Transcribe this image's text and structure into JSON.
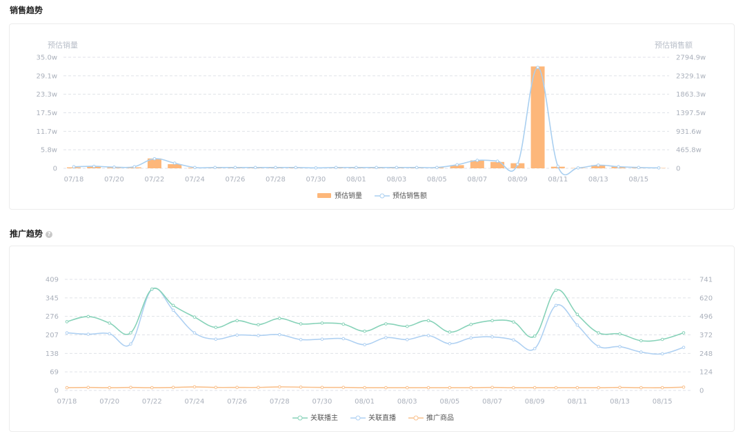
{
  "sales_section": {
    "title": "销售趋势"
  },
  "promo_section": {
    "title": "推广趋势",
    "help_icon": "question-circle-icon"
  },
  "chart_data": [
    {
      "type": "bar+line",
      "y_left_title": "预估销量",
      "y_right_title": "预估销售额",
      "y_left_ticks": [
        "0",
        "5.8w",
        "11.7w",
        "17.5w",
        "23.3w",
        "29.1w",
        "35.0w"
      ],
      "y_right_ticks": [
        "0",
        "465.8w",
        "931.6w",
        "1397.5w",
        "1863.3w",
        "2329.1w",
        "2794.9w"
      ],
      "y_left_range": [
        0,
        350000
      ],
      "y_right_range": [
        0,
        27949000
      ],
      "x_tick_labels": [
        "07/18",
        "07/20",
        "07/22",
        "07/24",
        "07/26",
        "07/28",
        "07/30",
        "08/01",
        "08/03",
        "08/05",
        "08/07",
        "08/09",
        "08/11",
        "08/13",
        "08/15"
      ],
      "categories": [
        "07/18",
        "07/19",
        "07/20",
        "07/21",
        "07/22",
        "07/23",
        "07/24",
        "07/25",
        "07/26",
        "07/27",
        "07/28",
        "07/29",
        "07/30",
        "07/31",
        "08/01",
        "08/02",
        "08/03",
        "08/04",
        "08/05",
        "08/06",
        "08/07",
        "08/08",
        "08/09",
        "08/10",
        "08/11",
        "08/12",
        "08/13",
        "08/14",
        "08/15",
        "08/16"
      ],
      "grid": true,
      "legend_position": "bottom",
      "series": [
        {
          "name": "预估销量",
          "kind": "bar",
          "color": "#fdb77a",
          "axis": "left",
          "values": [
            3000,
            5000,
            3000,
            3000,
            31000,
            13000,
            2000,
            2000,
            2000,
            2000,
            2000,
            2000,
            1500,
            2000,
            2000,
            2000,
            2000,
            2000,
            2000,
            10000,
            25000,
            20000,
            16000,
            321000,
            5000,
            1000,
            10000,
            5000,
            2000,
            1000
          ]
        },
        {
          "name": "预估销售额",
          "kind": "line",
          "color": "#a9cff0",
          "axis": "right",
          "values": [
            400000,
            500000,
            300000,
            400000,
            2400000,
            1300000,
            200000,
            200000,
            200000,
            200000,
            200000,
            200000,
            100000,
            200000,
            200000,
            200000,
            200000,
            200000,
            200000,
            900000,
            2000000,
            1800000,
            1000000,
            25400000,
            500000,
            100000,
            800000,
            400000,
            200000,
            100000
          ]
        }
      ]
    },
    {
      "type": "line",
      "y_left_ticks": [
        "0",
        "69",
        "138",
        "207",
        "276",
        "345",
        "409"
      ],
      "y_right_ticks": [
        "0",
        "124",
        "248",
        "372",
        "496",
        "620",
        "741"
      ],
      "y_left_range": [
        0,
        409
      ],
      "y_right_range": [
        0,
        741
      ],
      "x_tick_labels": [
        "07/18",
        "07/20",
        "07/22",
        "07/24",
        "07/26",
        "07/28",
        "07/30",
        "08/01",
        "08/03",
        "08/05",
        "08/07",
        "08/09",
        "08/11",
        "08/13",
        "08/15"
      ],
      "categories": [
        "07/18",
        "07/19",
        "07/20",
        "07/21",
        "07/22",
        "07/23",
        "07/24",
        "07/25",
        "07/26",
        "07/27",
        "07/28",
        "07/29",
        "07/30",
        "07/31",
        "08/01",
        "08/02",
        "08/03",
        "08/04",
        "08/05",
        "08/06",
        "08/07",
        "08/08",
        "08/09",
        "08/10",
        "08/11",
        "08/12",
        "08/13",
        "08/14",
        "08/15",
        "08/16"
      ],
      "grid": true,
      "legend_position": "bottom",
      "series": [
        {
          "name": "关联播主",
          "color": "#86d2b8",
          "axis": "left",
          "values": [
            253,
            272,
            248,
            212,
            373,
            313,
            270,
            232,
            257,
            242,
            265,
            245,
            248,
            244,
            218,
            245,
            236,
            257,
            215,
            243,
            257,
            252,
            200,
            369,
            280,
            212,
            208,
            183,
            188,
            212
          ]
        },
        {
          "name": "关联直播",
          "color": "#aed0f2",
          "axis": "right",
          "values": [
            384,
            375,
            378,
            310,
            675,
            535,
            384,
            342,
            369,
            366,
            372,
            339,
            342,
            345,
            305,
            352,
            339,
            366,
            312,
            350,
            357,
            337,
            279,
            567,
            436,
            294,
            292,
            256,
            244,
            287
          ]
        },
        {
          "name": "推广商品",
          "color": "#f9c08c",
          "axis": "left",
          "values": [
            10,
            11,
            10,
            11,
            10,
            11,
            13,
            11,
            11,
            11,
            13,
            12,
            11,
            11,
            10,
            10,
            10,
            10,
            10,
            10,
            11,
            10,
            10,
            10,
            10,
            10,
            11,
            10,
            10,
            12
          ]
        }
      ]
    }
  ]
}
